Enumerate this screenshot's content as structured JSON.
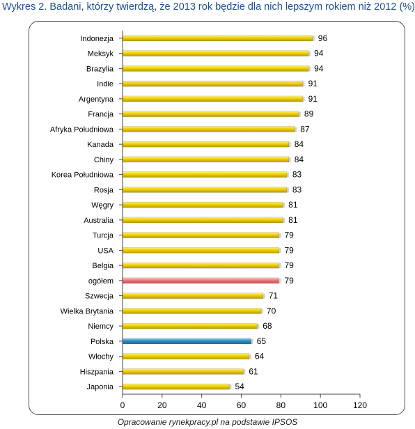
{
  "title": "Wykres 2. Badani, którzy twierdzą, że 2013 rok będzie dla nich lepszym rokiem niż 2012 (%)",
  "source": "Opracowanie rynekpracy.pl na podstawie IPSOS",
  "colors": {
    "default": "#f0d000",
    "overall": "#f07878",
    "poland": "#2a8fbf",
    "title": "#1f4e9c"
  },
  "chart_data": {
    "type": "bar",
    "orientation": "horizontal",
    "title": "Wykres 2. Badani, którzy twierdzą, że 2013 rok będzie dla nich lepszym rokiem niż 2012 (%)",
    "categories": [
      "Indonezja",
      "Meksyk",
      "Brazylia",
      "Indie",
      "Argentyna",
      "Francja",
      "Afryka Południowa",
      "Kanada",
      "Chiny",
      "Korea Południowa",
      "Rosja",
      "Węgry",
      "Australia",
      "Turcja",
      "USA",
      "Belgia",
      "ogółem",
      "Szwecja",
      "Wielka Brytania",
      "Niemcy",
      "Polska",
      "Włochy",
      "Hiszpania",
      "Japonia"
    ],
    "values": [
      96,
      94,
      94,
      91,
      91,
      89,
      87,
      84,
      84,
      83,
      83,
      81,
      81,
      79,
      79,
      79,
      79,
      71,
      70,
      68,
      65,
      64,
      61,
      54
    ],
    "highlight": {
      "ogółem": "overall",
      "Polska": "poland"
    },
    "xlim": [
      0,
      120
    ],
    "xticks": [
      0,
      20,
      40,
      60,
      80,
      100,
      120
    ],
    "grid": false,
    "legend": "none"
  }
}
